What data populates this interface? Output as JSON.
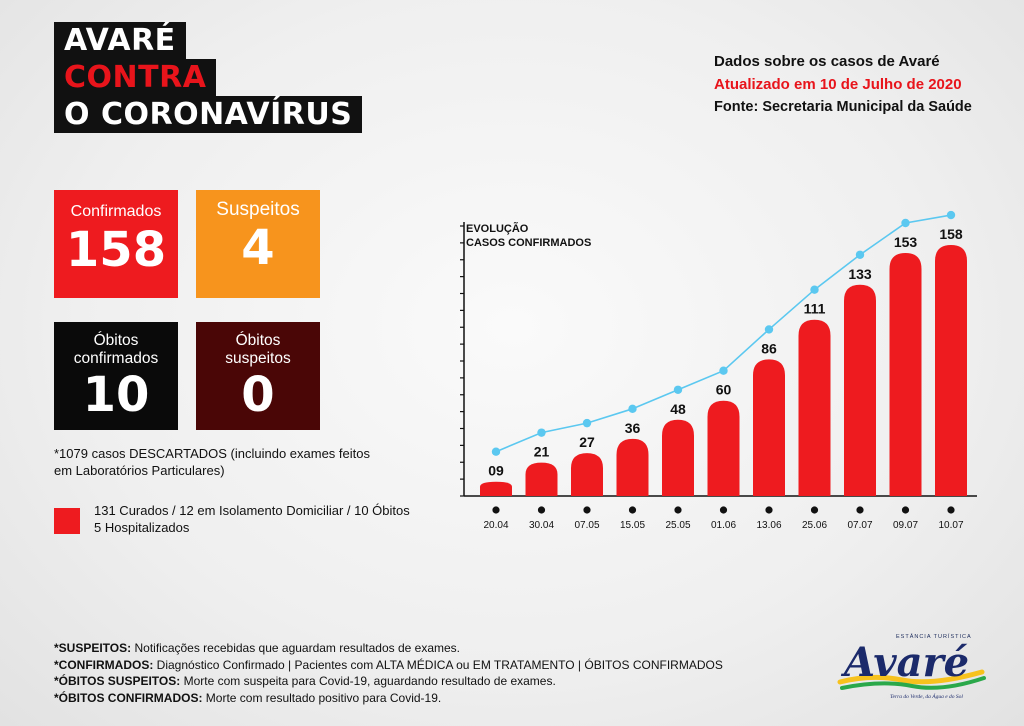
{
  "header": {
    "title_lines": [
      "AVARÉ",
      "CONTRA",
      "O CORONAVÍRUS"
    ],
    "data_title": "Dados sobre os casos de Avaré",
    "updated": "Atualizado em 10 de Julho de 2020",
    "source": "Fonte: Secretaria Municipal da Saúde"
  },
  "stats": {
    "confirmed": {
      "label": "Confirmados",
      "value": "158",
      "color": "#ee1b1f"
    },
    "suspected": {
      "label": "Suspeitos",
      "value": "4",
      "color": "#f7941d"
    },
    "deaths": {
      "label_1": "Óbitos",
      "label_2": "confirmados",
      "value": "10",
      "color": "#0a0a0a"
    },
    "suspected_deaths": {
      "label_1": "Óbitos",
      "label_2": "suspeitos",
      "value": "0",
      "color": "#4a0606"
    }
  },
  "descartados": {
    "line1": "*1079 casos DESCARTADOS (incluindo exames feitos",
    "line2": "em Laboratórios Particulares)"
  },
  "legend": {
    "line1": "131 Curados / 12 em Isolamento Domiciliar / 10 Óbitos",
    "line2": "5 Hospitalizados"
  },
  "notes": [
    {
      "key": "*SUSPEITOS:",
      "text": " Notificações recebidas que aguardam resultados de exames."
    },
    {
      "key": "*CONFIRMADOS:",
      "text": " Diagnóstico Confirmado | Pacientes com ALTA MÉDICA ou EM TRATAMENTO | ÓBITOS CONFIRMADOS"
    },
    {
      "key": "*ÓBITOS SUSPEITOS:",
      "text": " Morte com suspeita para Covid-19, aguardando resultado de exames."
    },
    {
      "key": "*ÓBITOS CONFIRMADOS:",
      "text": " Morte com resultado positivo para Covid-19."
    }
  ],
  "logo": {
    "text": "Avaré",
    "top_text": "ESTÂNCIA TURÍSTICA",
    "tagline": "Terra do Verde, da Água e do Sol"
  },
  "colors": {
    "accent_red": "#ee1b1f",
    "line_blue": "#5bc8f0"
  },
  "chart_data": {
    "type": "bar",
    "title_lines": [
      "EVOLUÇÃO",
      "CASOS CONFIRMADOS"
    ],
    "categories": [
      "20.04",
      "30.04",
      "07.05",
      "15.05",
      "25.05",
      "01.06",
      "13.06",
      "25.06",
      "07.07",
      "09.07",
      "10.07"
    ],
    "labels": [
      "09",
      "21",
      "27",
      "36",
      "48",
      "60",
      "86",
      "111",
      "133",
      "153",
      "158"
    ],
    "values": [
      9,
      21,
      27,
      36,
      48,
      60,
      86,
      111,
      133,
      153,
      158
    ],
    "line_overlay": true,
    "ylim": [
      0,
      170
    ]
  }
}
